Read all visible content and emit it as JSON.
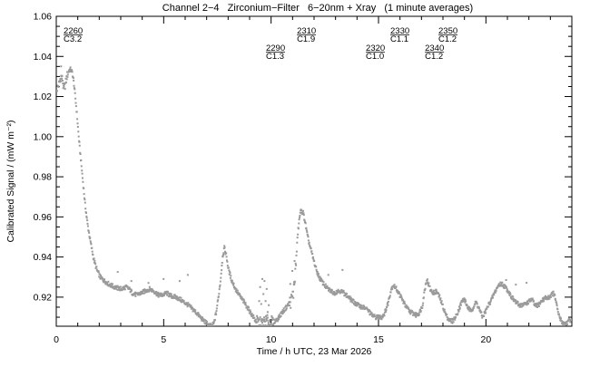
{
  "colors": {
    "background": "#ffffff",
    "axis": "#000000",
    "text": "#000000",
    "points": "#9a9a9a"
  },
  "chart_data": {
    "type": "scatter",
    "title": "Channel 2−4   Zirconium−Filter   6−20nm + Xray   (1 minute averages)",
    "xlabel": "Time / h UTC, 23 Mar 2026",
    "ylabel": "Calibrated Signal / (mW m⁻²)",
    "xlim": [
      0,
      24
    ],
    "ylim": [
      0.9055,
      1.06
    ],
    "x_major_ticks": [
      {
        "t": 0,
        "label": "0"
      },
      {
        "t": 5,
        "label": "5"
      },
      {
        "t": 10,
        "label": "10"
      },
      {
        "t": 15,
        "label": "15"
      },
      {
        "t": 20,
        "label": "20"
      }
    ],
    "x_minor_step": 1,
    "y_major_ticks": [
      {
        "v": 0.92,
        "label": "0.92"
      },
      {
        "v": 0.94,
        "label": "0.94"
      },
      {
        "v": 0.96,
        "label": "0.96"
      },
      {
        "v": 0.98,
        "label": "0.98"
      },
      {
        "v": 1.0,
        "label": "1.00"
      },
      {
        "v": 1.02,
        "label": "1.02"
      },
      {
        "v": 1.04,
        "label": "1.04"
      },
      {
        "v": 1.06,
        "label": "1.06"
      }
    ],
    "y_minor_step": 0.005,
    "grid": false,
    "legend": "none",
    "sample_interval_minutes": 1,
    "annotations": [
      {
        "event": "2260",
        "class": "C3.2",
        "t": 0.34,
        "row": 1
      },
      {
        "event": "2290",
        "class": "C1.3",
        "t": 9.76,
        "row": 2
      },
      {
        "event": "2310",
        "class": "C1.9",
        "t": 11.2,
        "row": 1
      },
      {
        "event": "2320",
        "class": "C1.0",
        "t": 14.41,
        "row": 2
      },
      {
        "event": "2330",
        "class": "C1.1",
        "t": 15.55,
        "row": 1
      },
      {
        "event": "2340",
        "class": "C1.2",
        "t": 17.16,
        "row": 2
      },
      {
        "event": "2350",
        "class": "C1.2",
        "t": 17.79,
        "row": 1
      }
    ],
    "series_keypoints": [
      [
        0.0,
        1.0245
      ],
      [
        0.1,
        1.027
      ],
      [
        0.18,
        1.0305
      ],
      [
        0.25,
        1.029
      ],
      [
        0.3,
        1.024
      ],
      [
        0.38,
        1.0265
      ],
      [
        0.45,
        1.0305
      ],
      [
        0.55,
        1.0335
      ],
      [
        0.62,
        1.034
      ],
      [
        0.7,
        1.0325
      ],
      [
        0.78,
        1.027
      ],
      [
        0.85,
        1.0195
      ],
      [
        0.92,
        1.0115
      ],
      [
        1.0,
        1.0005
      ],
      [
        1.1,
        0.9895
      ],
      [
        1.2,
        0.978
      ],
      [
        1.3,
        0.9665
      ],
      [
        1.42,
        0.9565
      ],
      [
        1.55,
        0.948
      ],
      [
        1.7,
        0.9395
      ],
      [
        1.85,
        0.934
      ],
      [
        2.0,
        0.9305
      ],
      [
        2.2,
        0.9285
      ],
      [
        2.4,
        0.927
      ],
      [
        2.6,
        0.9258
      ],
      [
        2.8,
        0.925
      ],
      [
        3.0,
        0.9245
      ],
      [
        3.2,
        0.9255
      ],
      [
        3.35,
        0.9245
      ],
      [
        3.5,
        0.9225
      ],
      [
        3.7,
        0.9215
      ],
      [
        3.9,
        0.9225
      ],
      [
        4.1,
        0.9235
      ],
      [
        4.3,
        0.9245
      ],
      [
        4.5,
        0.9235
      ],
      [
        4.7,
        0.9215
      ],
      [
        4.9,
        0.9215
      ],
      [
        5.1,
        0.9225
      ],
      [
        5.3,
        0.921
      ],
      [
        5.5,
        0.9205
      ],
      [
        5.7,
        0.9195
      ],
      [
        5.9,
        0.918
      ],
      [
        6.1,
        0.9165
      ],
      [
        6.3,
        0.9145
      ],
      [
        6.5,
        0.9125
      ],
      [
        6.7,
        0.91
      ],
      [
        6.9,
        0.908
      ],
      [
        7.05,
        0.9065
      ],
      [
        7.2,
        0.906
      ],
      [
        7.3,
        0.9075
      ],
      [
        7.4,
        0.9125
      ],
      [
        7.5,
        0.92
      ],
      [
        7.6,
        0.9285
      ],
      [
        7.7,
        0.9405
      ],
      [
        7.78,
        0.945
      ],
      [
        7.88,
        0.941
      ],
      [
        7.95,
        0.9355
      ],
      [
        8.1,
        0.9295
      ],
      [
        8.3,
        0.9245
      ],
      [
        8.5,
        0.921
      ],
      [
        8.7,
        0.918
      ],
      [
        8.9,
        0.9145
      ],
      [
        9.1,
        0.911
      ],
      [
        9.25,
        0.9085
      ],
      [
        9.4,
        0.9075
      ],
      [
        9.55,
        0.9075
      ],
      [
        9.7,
        0.9085
      ],
      [
        9.85,
        0.9085
      ],
      [
        10.0,
        0.908
      ],
      [
        10.15,
        0.9085
      ],
      [
        10.3,
        0.91
      ],
      [
        10.45,
        0.9125
      ],
      [
        10.6,
        0.9145
      ],
      [
        10.75,
        0.9165
      ],
      [
        10.9,
        0.919
      ],
      [
        11.0,
        0.9225
      ],
      [
        11.1,
        0.935
      ],
      [
        11.2,
        0.9525
      ],
      [
        11.3,
        0.9615
      ],
      [
        11.35,
        0.9635
      ],
      [
        11.45,
        0.9625
      ],
      [
        11.55,
        0.9575
      ],
      [
        11.65,
        0.951
      ],
      [
        11.75,
        0.9465
      ],
      [
        11.85,
        0.9425
      ],
      [
        11.95,
        0.9385
      ],
      [
        12.05,
        0.9345
      ],
      [
        12.15,
        0.9315
      ],
      [
        12.3,
        0.9285
      ],
      [
        12.45,
        0.9265
      ],
      [
        12.6,
        0.9245
      ],
      [
        12.75,
        0.9235
      ],
      [
        12.9,
        0.9225
      ],
      [
        13.05,
        0.9235
      ],
      [
        13.2,
        0.9235
      ],
      [
        13.35,
        0.9225
      ],
      [
        13.5,
        0.921
      ],
      [
        13.65,
        0.9195
      ],
      [
        13.8,
        0.918
      ],
      [
        14.0,
        0.9165
      ],
      [
        14.2,
        0.9155
      ],
      [
        14.35,
        0.915
      ],
      [
        14.5,
        0.9135
      ],
      [
        14.65,
        0.9115
      ],
      [
        14.8,
        0.9105
      ],
      [
        14.95,
        0.9105
      ],
      [
        15.1,
        0.9105
      ],
      [
        15.25,
        0.9125
      ],
      [
        15.4,
        0.9175
      ],
      [
        15.55,
        0.9245
      ],
      [
        15.65,
        0.9265
      ],
      [
        15.8,
        0.9245
      ],
      [
        15.95,
        0.9215
      ],
      [
        16.1,
        0.9185
      ],
      [
        16.25,
        0.9155
      ],
      [
        16.4,
        0.9135
      ],
      [
        16.55,
        0.9125
      ],
      [
        16.7,
        0.9115
      ],
      [
        16.85,
        0.9125
      ],
      [
        17.0,
        0.916
      ],
      [
        17.1,
        0.9235
      ],
      [
        17.2,
        0.9295
      ],
      [
        17.3,
        0.9265
      ],
      [
        17.4,
        0.9235
      ],
      [
        17.55,
        0.9225
      ],
      [
        17.65,
        0.9235
      ],
      [
        17.8,
        0.9205
      ],
      [
        17.95,
        0.916
      ],
      [
        18.1,
        0.9115
      ],
      [
        18.25,
        0.909
      ],
      [
        18.4,
        0.9085
      ],
      [
        18.55,
        0.9105
      ],
      [
        18.7,
        0.9145
      ],
      [
        18.85,
        0.9185
      ],
      [
        18.95,
        0.9195
      ],
      [
        19.1,
        0.9155
      ],
      [
        19.25,
        0.9135
      ],
      [
        19.4,
        0.916
      ],
      [
        19.5,
        0.918
      ],
      [
        19.65,
        0.9145
      ],
      [
        19.8,
        0.9105
      ],
      [
        19.95,
        0.9135
      ],
      [
        20.1,
        0.917
      ],
      [
        20.25,
        0.92
      ],
      [
        20.4,
        0.9235
      ],
      [
        20.55,
        0.9265
      ],
      [
        20.7,
        0.9272
      ],
      [
        20.85,
        0.9255
      ],
      [
        21.0,
        0.9235
      ],
      [
        21.15,
        0.9205
      ],
      [
        21.3,
        0.9185
      ],
      [
        21.5,
        0.9165
      ],
      [
        21.7,
        0.9165
      ],
      [
        21.85,
        0.9175
      ],
      [
        22.0,
        0.9185
      ],
      [
        22.1,
        0.9195
      ],
      [
        22.25,
        0.916
      ],
      [
        22.4,
        0.9165
      ],
      [
        22.55,
        0.9185
      ],
      [
        22.7,
        0.92
      ],
      [
        22.85,
        0.92
      ],
      [
        23.0,
        0.9215
      ],
      [
        23.1,
        0.9225
      ],
      [
        23.2,
        0.9195
      ],
      [
        23.3,
        0.9135
      ],
      [
        23.42,
        0.9095
      ],
      [
        23.55,
        0.9075
      ],
      [
        23.7,
        0.9075
      ],
      [
        23.82,
        0.9085
      ],
      [
        23.93,
        0.9095
      ]
    ],
    "outlier_points": [
      [
        0.18,
        1.0355
      ],
      [
        2.82,
        0.933
      ],
      [
        3.45,
        0.9285
      ],
      [
        4.25,
        0.9275
      ],
      [
        4.95,
        0.9295
      ],
      [
        5.7,
        0.9285
      ],
      [
        6.08,
        0.9315
      ],
      [
        9.4,
        0.9185
      ],
      [
        9.45,
        0.9255
      ],
      [
        9.5,
        0.917
      ],
      [
        9.55,
        0.9295
      ],
      [
        9.6,
        0.922
      ],
      [
        9.65,
        0.9285
      ],
      [
        9.7,
        0.9185
      ],
      [
        9.75,
        0.9245
      ],
      [
        9.8,
        0.913
      ],
      [
        9.85,
        0.9165
      ],
      [
        10.85,
        0.927
      ],
      [
        10.95,
        0.9335
      ],
      [
        11.03,
        0.928
      ],
      [
        11.05,
        0.9385
      ],
      [
        12.62,
        0.9315
      ],
      [
        13.28,
        0.934
      ],
      [
        20.9,
        0.929
      ],
      [
        21.35,
        0.9267
      ],
      [
        21.85,
        0.9276
      ]
    ],
    "noise_base_amplitude": 0.0011,
    "noise_regions": [
      {
        "from": 0.0,
        "to": 0.5,
        "amp": 0.002
      },
      {
        "from": 9.3,
        "to": 10.05,
        "amp": 0.003
      },
      {
        "from": 10.8,
        "to": 11.15,
        "amp": 0.0035
      }
    ]
  }
}
